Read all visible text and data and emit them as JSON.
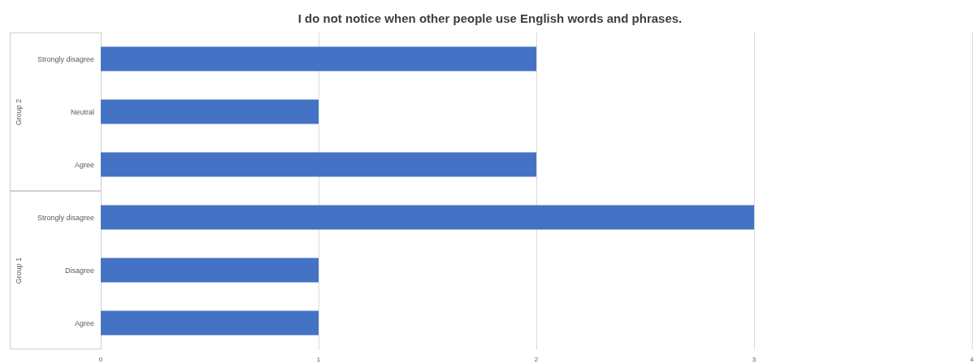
{
  "chart_data": {
    "type": "bar",
    "orientation": "horizontal",
    "title": "I do not notice when other people use English words and phrases.",
    "categories": [
      "Strongly disagree",
      "Neutral",
      "Agree",
      "Strongly disagree",
      "Disagree",
      "Agree"
    ],
    "values": [
      2,
      1,
      2,
      3,
      1,
      1
    ],
    "color": "#4472c4",
    "xlim": [
      0,
      4
    ],
    "xticks": [
      0,
      1,
      2,
      3,
      4
    ],
    "grid": "x",
    "annotations": [
      "Group 2",
      "Group 1"
    ]
  }
}
